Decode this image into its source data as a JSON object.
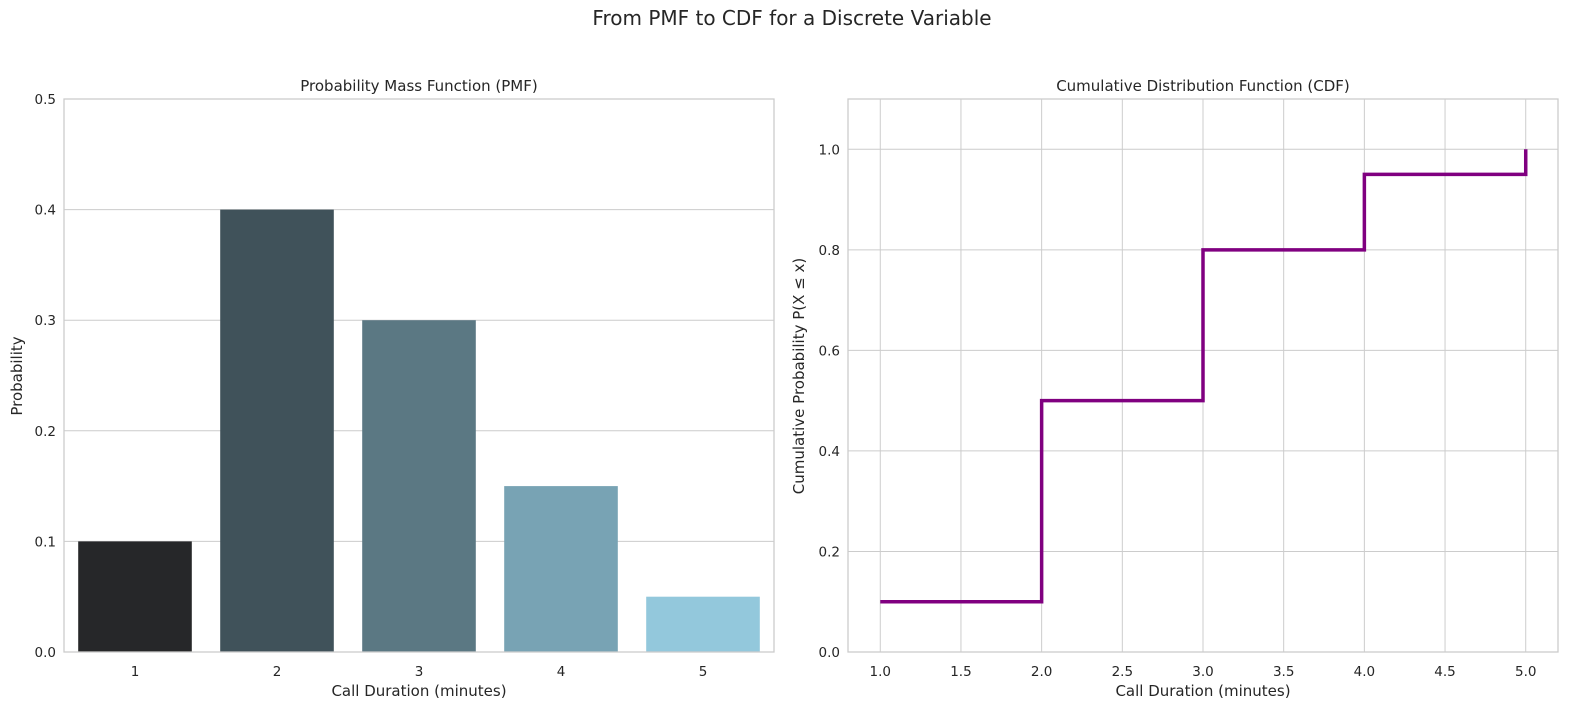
{
  "figure": {
    "suptitle": "From PMF to CDF for a Discrete Variable"
  },
  "chart_data": [
    {
      "type": "bar",
      "title": "Probability Mass Function (PMF)",
      "xlabel": "Call Duration (minutes)",
      "ylabel": "Probability",
      "categories": [
        "1",
        "2",
        "3",
        "4",
        "5"
      ],
      "values": [
        0.1,
        0.4,
        0.3,
        0.15,
        0.05
      ],
      "bar_colors": [
        "#262729",
        "#40525a",
        "#5b7883",
        "#78a3b4",
        "#93c8dc"
      ],
      "ylim": [
        0,
        0.5
      ],
      "yticks": [
        0.0,
        0.1,
        0.2,
        0.3,
        0.4,
        0.5
      ],
      "ytick_labels": [
        "0.0",
        "0.1",
        "0.2",
        "0.3",
        "0.4",
        "0.5"
      ],
      "grid": "horizontal"
    },
    {
      "type": "line",
      "title": "Cumulative Distribution Function (CDF)",
      "xlabel": "Call Duration (minutes)",
      "ylabel": "Cumulative Probability P(X ≤ x)",
      "step": "post",
      "x": [
        1,
        2,
        3,
        4,
        5
      ],
      "y": [
        0.1,
        0.5,
        0.8,
        0.95,
        1.0
      ],
      "line_color": "#800080",
      "xlim": [
        0.8,
        5.2
      ],
      "ylim": [
        0,
        1.1
      ],
      "xticks": [
        1.0,
        1.5,
        2.0,
        2.5,
        3.0,
        3.5,
        4.0,
        4.5,
        5.0
      ],
      "xtick_labels": [
        "1.0",
        "1.5",
        "2.0",
        "2.5",
        "3.0",
        "3.5",
        "4.0",
        "4.5",
        "5.0"
      ],
      "yticks": [
        0.0,
        0.2,
        0.4,
        0.6,
        0.8,
        1.0
      ],
      "ytick_labels": [
        "0.0",
        "0.2",
        "0.4",
        "0.6",
        "0.8",
        "1.0"
      ],
      "grid": "both"
    }
  ]
}
